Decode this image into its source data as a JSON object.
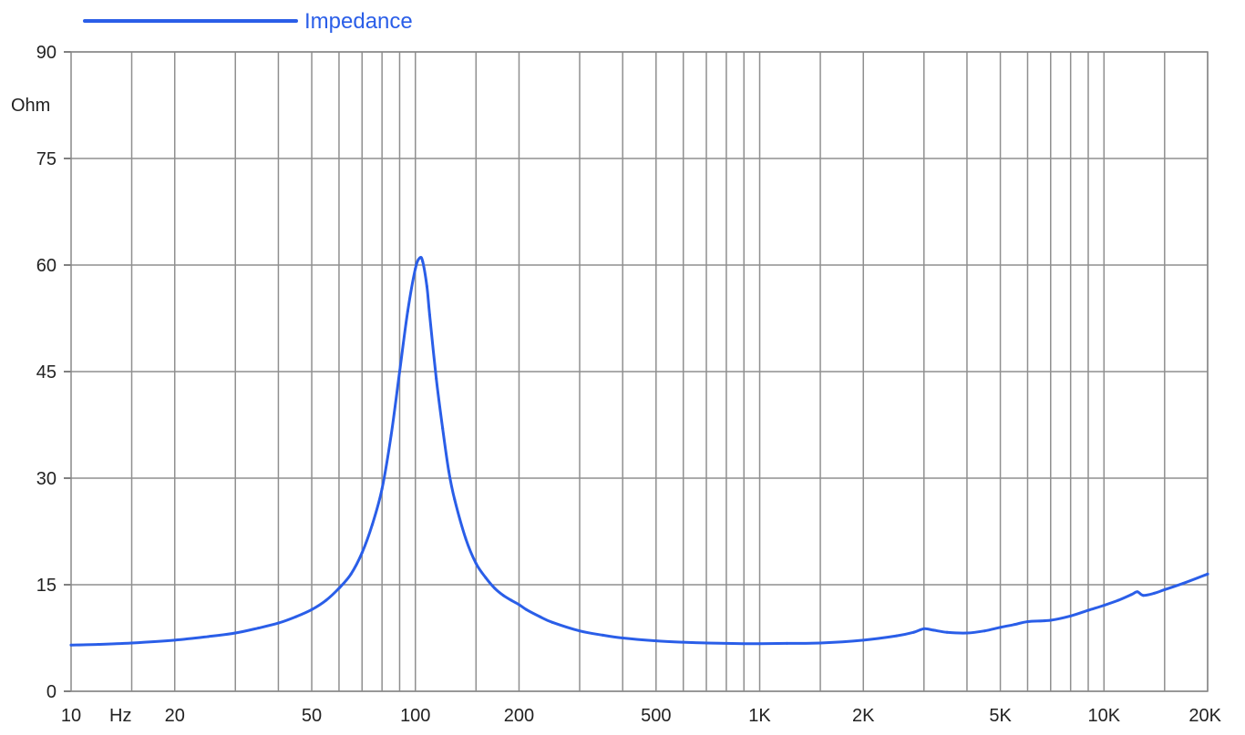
{
  "chart_data": {
    "type": "line",
    "title": "",
    "xlabel": "Hz",
    "ylabel": "Ohm",
    "x_scale": "log",
    "xlim": [
      10,
      20000
    ],
    "ylim": [
      0,
      90
    ],
    "grid": true,
    "legend_position": "top-left",
    "y_ticks": [
      0,
      15,
      30,
      45,
      60,
      75,
      90
    ],
    "y_tick_labels": [
      "0",
      "15",
      "30",
      "45",
      "60",
      "75",
      "90"
    ],
    "x_labeled_ticks": [
      10,
      20,
      50,
      100,
      200,
      500,
      1000,
      2000,
      5000,
      10000,
      20000
    ],
    "x_tick_labels": [
      "10",
      "20",
      "50",
      "100",
      "200",
      "500",
      "1K",
      "2K",
      "5K",
      "10K",
      "20K"
    ],
    "x_grid_lines": [
      15,
      20,
      30,
      40,
      50,
      60,
      70,
      80,
      90,
      100,
      150,
      200,
      300,
      400,
      500,
      600,
      700,
      800,
      900,
      1000,
      1500,
      2000,
      3000,
      4000,
      5000,
      6000,
      7000,
      8000,
      9000,
      10000,
      15000,
      20000
    ],
    "series": [
      {
        "name": "Impedance",
        "color": "#2a5ee8",
        "x": [
          10,
          12,
          15,
          20,
          25,
          30,
          35,
          40,
          45,
          50,
          55,
          60,
          65,
          70,
          75,
          80,
          85,
          90,
          95,
          100,
          103,
          105,
          108,
          110,
          115,
          120,
          125,
          130,
          140,
          150,
          160,
          170,
          180,
          190,
          200,
          210,
          230,
          250,
          300,
          350,
          400,
          500,
          600,
          700,
          800,
          900,
          1000,
          1200,
          1500,
          2000,
          2500,
          2800,
          3000,
          3200,
          3500,
          4000,
          4500,
          5000,
          5500,
          6000,
          7000,
          8000,
          9000,
          10000,
          11000,
          12000,
          12500,
          13000,
          14000,
          15000,
          17000,
          20000
        ],
        "y": [
          6.5,
          6.6,
          6.8,
          7.2,
          7.7,
          8.2,
          8.9,
          9.6,
          10.5,
          11.5,
          12.8,
          14.5,
          16.5,
          19.5,
          23.5,
          28.5,
          36,
          45,
          53.5,
          59.5,
          61,
          60.5,
          57,
          53,
          44,
          37,
          31,
          27,
          21.5,
          18,
          16,
          14.5,
          13.5,
          12.8,
          12.2,
          11.5,
          10.5,
          9.7,
          8.5,
          7.9,
          7.5,
          7.1,
          6.9,
          6.8,
          6.75,
          6.7,
          6.7,
          6.75,
          6.8,
          7.2,
          7.8,
          8.3,
          8.8,
          8.6,
          8.3,
          8.2,
          8.5,
          9,
          9.4,
          9.8,
          10,
          10.6,
          11.4,
          12.1,
          12.8,
          13.6,
          14,
          13.5,
          13.8,
          14.3,
          15.2,
          16.5
        ]
      }
    ]
  }
}
